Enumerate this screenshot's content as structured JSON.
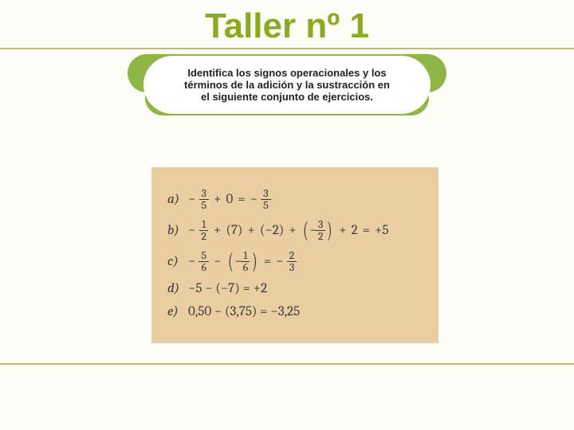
{
  "title": "Taller nº 1",
  "instruction": {
    "line1": "Identifica  los signos operacionales y los",
    "line2": "términos  de la adición y la sustracción en",
    "line3": "el siguiente  conjunto de ejercicios."
  },
  "colors": {
    "title_color": "#8aaa1f",
    "rule_color": "#c7b77a",
    "cloud_green": "#8fb547",
    "math_box_bg": "#eacda0",
    "text_color": "#3a3a3a",
    "page_bg": "#fdfdf8"
  },
  "exercises": {
    "a": {
      "label": "a)",
      "minus1": "−",
      "frac1_num": "3",
      "frac1_den": "5",
      "op1": "+",
      "zero": "0",
      "eq": "=",
      "minus2": "−",
      "frac2_num": "3",
      "frac2_den": "5"
    },
    "b": {
      "label": "b)",
      "minus1": "−",
      "frac1_num": "1",
      "frac1_den": "2",
      "op1": "+",
      "p1": "(7)",
      "op2": "+",
      "p2": "(−2)",
      "op3": "+",
      "bp_minus": "−",
      "bp_num": "3",
      "bp_den": "2",
      "op4": "+",
      "two": "2",
      "eq": "=",
      "res": "+5"
    },
    "c": {
      "label": "c)",
      "minus1": "−",
      "frac1_num": "5",
      "frac1_den": "6",
      "op1": "−",
      "bp_minus": "−",
      "bp_num": "1",
      "bp_den": "6",
      "eq": "=",
      "minus2": "−",
      "frac2_num": "2",
      "frac2_den": "3"
    },
    "d": {
      "label": "d)",
      "expr": "−5  −  (−7)  =  +2"
    },
    "e": {
      "label": "e)",
      "expr": "0,50 − (3,75) = −3,25"
    }
  }
}
